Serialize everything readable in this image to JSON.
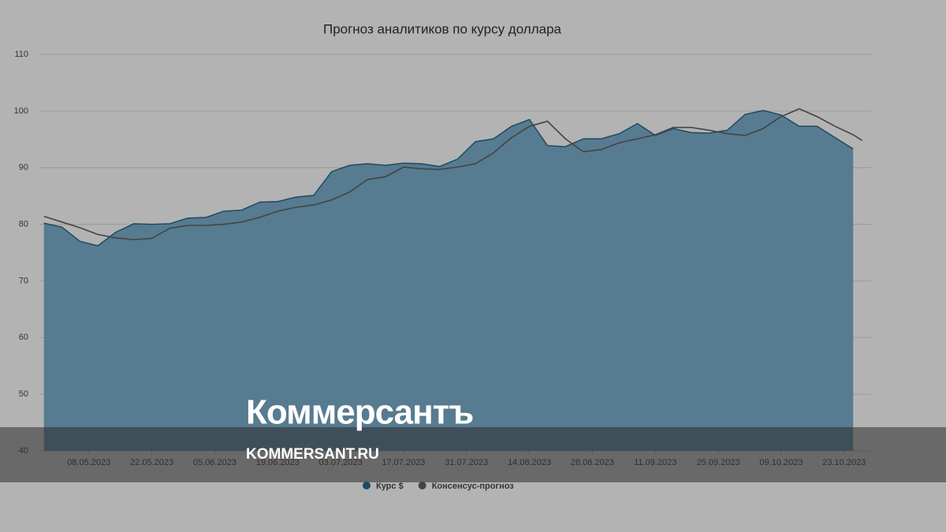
{
  "chart_data": {
    "type": "area",
    "title": "Прогноз аналитиков по курсу доллара",
    "x": [
      "28.04.2023",
      "02.05.2023",
      "06.05.2023",
      "10.05.2023",
      "14.05.2023",
      "18.05.2023",
      "22.05.2023",
      "26.05.2023",
      "30.05.2023",
      "03.06.2023",
      "07.06.2023",
      "11.06.2023",
      "15.06.2023",
      "19.06.2023",
      "23.06.2023",
      "27.06.2023",
      "01.07.2023",
      "05.07.2023",
      "09.07.2023",
      "13.07.2023",
      "17.07.2023",
      "21.07.2023",
      "25.07.2023",
      "29.07.2023",
      "02.08.2023",
      "06.08.2023",
      "10.08.2023",
      "14.08.2023",
      "18.08.2023",
      "22.08.2023",
      "26.08.2023",
      "30.08.2023",
      "03.09.2023",
      "07.09.2023",
      "11.09.2023",
      "15.09.2023",
      "19.09.2023",
      "23.09.2023",
      "27.09.2023",
      "01.10.2023",
      "05.10.2023",
      "09.10.2023",
      "13.10.2023",
      "17.10.2023",
      "21.10.2023",
      "25.10.2023",
      "27.10.2023"
    ],
    "series": [
      {
        "name": "Курс $",
        "color": "#577b90",
        "values": [
          80.2,
          79.5,
          77.0,
          76.2,
          78.6,
          80.1,
          80.0,
          80.1,
          81.1,
          81.2,
          82.3,
          82.5,
          83.9,
          84.0,
          84.8,
          85.1,
          89.3,
          90.4,
          90.7,
          90.4,
          90.8,
          90.7,
          90.2,
          91.5,
          94.6,
          95.1,
          97.3,
          98.5,
          93.9,
          93.7,
          95.1,
          95.1,
          96.0,
          97.8,
          95.7,
          96.9,
          96.2,
          96.1,
          96.6,
          99.4,
          100.1,
          99.3,
          97.3,
          97.3,
          95.3,
          93.3,
          null
        ]
      },
      {
        "name": "Консенсус-прогноз",
        "color": "#444444",
        "values": [
          81.4,
          80.4,
          79.4,
          78.2,
          77.6,
          77.3,
          77.5,
          79.3,
          79.8,
          79.8,
          80.0,
          80.4,
          81.2,
          82.3,
          83.0,
          83.4,
          84.3,
          85.7,
          87.9,
          88.4,
          90.1,
          89.8,
          89.7,
          90.1,
          90.7,
          92.6,
          95.3,
          97.3,
          98.2,
          95.1,
          92.8,
          93.2,
          94.4,
          95.1,
          95.8,
          97.1,
          97.1,
          96.6,
          96.0,
          95.7,
          96.9,
          99.0,
          100.4,
          99.0,
          97.3,
          95.8,
          94.8
        ]
      }
    ],
    "xlim": [
      "27.04.2023",
      "29.10.2023"
    ],
    "xticks": [
      "08.05.2023",
      "22.05.2023",
      "05.06.2023",
      "19.06.2023",
      "03.07.2023",
      "17.07.2023",
      "31.07.2023",
      "14.08.2023",
      "28.08.2023",
      "11.09.2023",
      "25.09.2023",
      "09.10.2023",
      "23.10.2023"
    ],
    "ylim": [
      40,
      110
    ],
    "yticks": [
      40,
      50,
      60,
      70,
      80,
      90,
      100,
      110
    ],
    "grid": true
  },
  "watermark": {
    "brand": "Коммерсантъ",
    "site": "KOMMERSANT.RU"
  }
}
